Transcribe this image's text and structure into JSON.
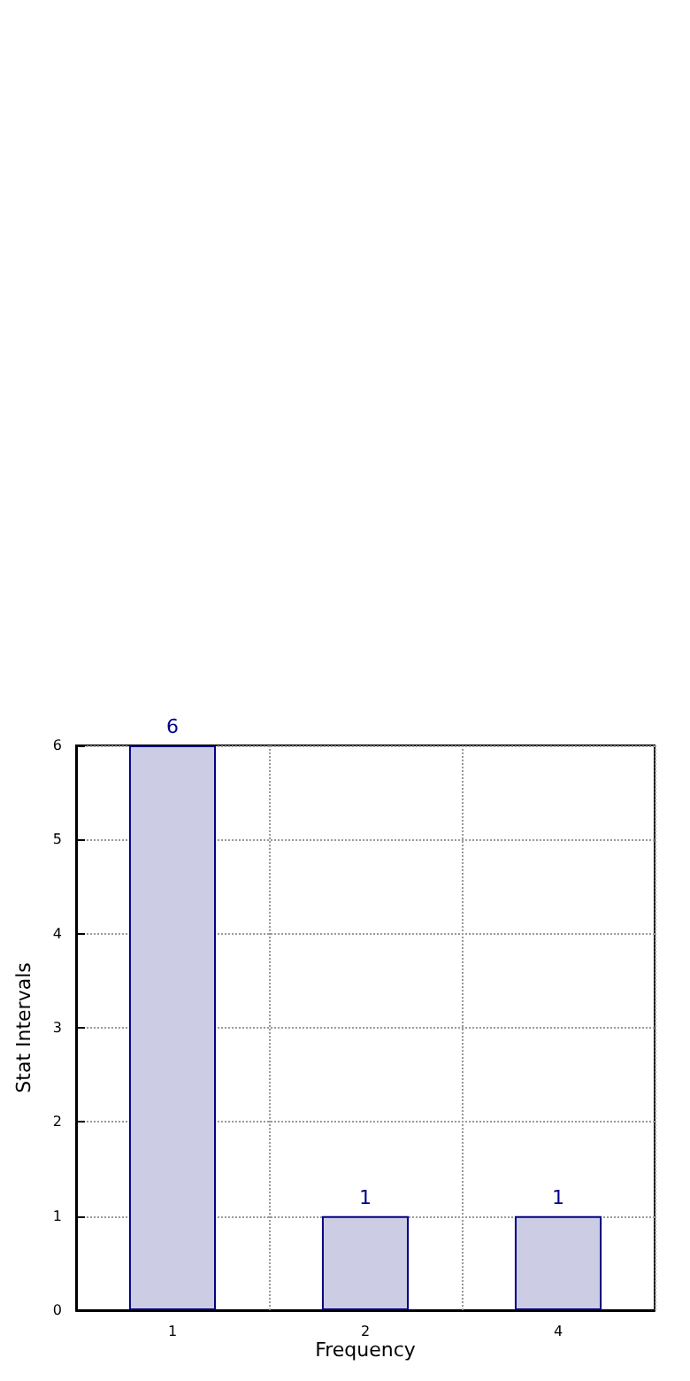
{
  "chart_data": {
    "type": "bar",
    "xlabel": "Frequency",
    "ylabel": "Stat Intervals",
    "categories": [
      "1",
      "2",
      "4"
    ],
    "values": [
      6,
      1,
      1
    ],
    "color": "#cccce5",
    "ylim": [
      0,
      6
    ],
    "yticks": [
      0,
      1,
      2,
      3,
      4,
      5,
      6
    ],
    "grid": true,
    "data_labels": true
  }
}
